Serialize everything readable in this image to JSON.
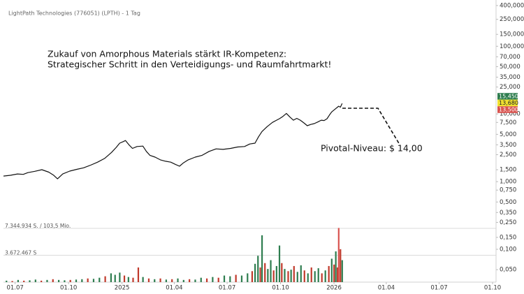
{
  "chart_data": {
    "type": "line",
    "title": "LightPath Technologies (776051) (LPTH) - 1 Tag",
    "annotations": [
      "Zukauf von Amorphous Materials stärkt IR-Kompetenz:",
      "Strategischer Schritt in den Verteidigungs- und Raumfahrtmarkt!",
      "Pivotal-Niveau: $ 14,00"
    ],
    "log_scale": true,
    "xlim": [
      -20,
      828
    ],
    "xticks": [
      {
        "value": 0,
        "label": "01.07"
      },
      {
        "value": 92,
        "label": "01.10"
      },
      {
        "value": 184,
        "label": "2025"
      },
      {
        "value": 274,
        "label": "01.04"
      },
      {
        "value": 365,
        "label": "01.07"
      },
      {
        "value": 457,
        "label": "01.10"
      },
      {
        "value": 549,
        "label": "2026"
      },
      {
        "value": 639,
        "label": "01.04"
      },
      {
        "value": 730,
        "label": "01.07"
      },
      {
        "value": 822,
        "label": "01.10"
      }
    ],
    "ylim": [
      0.036,
      483
    ],
    "yticks": [
      {
        "value": 400,
        "label": "400,000"
      },
      {
        "value": 250,
        "label": "250,000"
      },
      {
        "value": 150,
        "label": "150,000"
      },
      {
        "value": 100,
        "label": "100,000"
      },
      {
        "value": 70,
        "label": "70,000"
      },
      {
        "value": 50,
        "label": "50,000"
      },
      {
        "value": 35,
        "label": "35,000"
      },
      {
        "value": 25,
        "label": "25,000"
      },
      {
        "value": 10,
        "label": "10,000"
      },
      {
        "value": 7.5,
        "label": "7,500"
      },
      {
        "value": 5,
        "label": "5,000"
      },
      {
        "value": 3.5,
        "label": "3,500"
      },
      {
        "value": 2.5,
        "label": "2,500"
      },
      {
        "value": 1.5,
        "label": "1,500"
      },
      {
        "value": 1,
        "label": "1,000"
      },
      {
        "value": 0.75,
        "label": "0,750"
      },
      {
        "value": 0.5,
        "label": "0,500"
      },
      {
        "value": 0.35,
        "label": "0,350"
      },
      {
        "value": 0.25,
        "label": "0,250"
      },
      {
        "value": 0.15,
        "label": "0,150"
      },
      {
        "value": 0.1,
        "label": "0,100"
      },
      {
        "value": 0.05,
        "label": "0,050"
      }
    ],
    "series": [
      {
        "color": "#111111",
        "x": [
          -20,
          -8,
          4,
          14,
          22,
          34,
          46,
          58,
          66,
          73,
          82,
          94,
          106,
          118,
          130,
          142,
          154,
          166,
          174,
          180,
          186,
          190,
          196,
          202,
          210,
          220,
          226,
          232,
          241,
          250,
          259,
          268,
          276,
          283,
          290,
          298,
          310,
          322,
          334,
          346,
          358,
          371,
          383,
          395,
          404,
          413,
          419,
          425,
          434,
          443,
          449,
          455,
          461,
          467,
          473,
          479,
          485,
          491,
          497,
          503,
          509,
          515,
          521,
          527,
          532,
          537,
          541,
          545,
          551,
          557,
          560,
          563
        ],
        "values": [
          1.21,
          1.24,
          1.3,
          1.28,
          1.36,
          1.42,
          1.5,
          1.38,
          1.25,
          1.1,
          1.3,
          1.43,
          1.52,
          1.6,
          1.75,
          1.94,
          2.2,
          2.7,
          3.2,
          3.7,
          3.9,
          4.05,
          3.5,
          3.1,
          3.3,
          3.35,
          2.8,
          2.45,
          2.3,
          2.1,
          2.0,
          1.94,
          1.8,
          1.69,
          1.9,
          2.1,
          2.3,
          2.45,
          2.8,
          3.05,
          3.0,
          3.1,
          3.25,
          3.3,
          3.6,
          3.7,
          4.6,
          5.5,
          6.5,
          7.5,
          8.0,
          8.5,
          9.2,
          10.2,
          9.0,
          8.1,
          8.6,
          8.1,
          7.4,
          6.7,
          7.0,
          7.2,
          7.6,
          8.1,
          8.0,
          8.5,
          9.6,
          10.7,
          11.8,
          13.0,
          12.6,
          14.3
        ]
      }
    ],
    "price_labels": [
      {
        "label": "15,450",
        "value": 15.45,
        "color": "#2e7d4f"
      },
      {
        "label": "13,680",
        "value": 13.68,
        "color": "#f0e130"
      },
      {
        "label": "13,500",
        "value": 13.5,
        "color": "#d9534f"
      }
    ],
    "volume": {
      "type": "bar",
      "ylim": [
        0,
        7726000
      ],
      "yticks": [
        {
          "value": 7344934,
          "label": "7.344.934 S. / 103,5 Mio."
        },
        {
          "value": 3672467,
          "label": "3.672.467 S"
        }
      ],
      "x": [
        -15,
        -5,
        5,
        15,
        25,
        35,
        45,
        55,
        65,
        75,
        85,
        95,
        105,
        115,
        125,
        135,
        145,
        155,
        165,
        172,
        180,
        188,
        195,
        203,
        212,
        220,
        230,
        240,
        250,
        260,
        270,
        280,
        290,
        300,
        310,
        320,
        330,
        340,
        350,
        360,
        370,
        380,
        390,
        400,
        408,
        413,
        418,
        422,
        425,
        430,
        435,
        440,
        445,
        450,
        455,
        459,
        464,
        470,
        475,
        480,
        486,
        492,
        498,
        504,
        510,
        516,
        522,
        528,
        534,
        540,
        545,
        549,
        552,
        555,
        557,
        560,
        563
      ],
      "values": [
        200000,
        150000,
        300000,
        200000,
        250000,
        350000,
        200000,
        300000,
        400000,
        300000,
        250000,
        300000,
        350000,
        400000,
        500000,
        450000,
        600000,
        800000,
        1200000,
        1000000,
        1300000,
        900000,
        700000,
        600000,
        2000000,
        700000,
        500000,
        400000,
        500000,
        350000,
        400000,
        500000,
        300000,
        400000,
        350000,
        600000,
        500000,
        700000,
        600000,
        900000,
        800000,
        1000000,
        900000,
        1200000,
        1500000,
        2500000,
        3600000,
        2000000,
        6400000,
        2600000,
        1800000,
        3000000,
        1600000,
        2200000,
        5000000,
        2600000,
        1800000,
        1500000,
        1700000,
        2200000,
        1400000,
        2300000,
        1600000,
        1200000,
        2000000,
        1500000,
        1900000,
        1200000,
        1600000,
        2200000,
        3200000,
        2400000,
        4200000,
        2000000,
        7400000,
        4500000,
        3000000
      ],
      "colors": [
        "#2e7d4f",
        "#c0392b",
        "#2e7d4f",
        "#c0392b",
        "#2e7d4f",
        "#2e7d4f",
        "#c0392b",
        "#2e7d4f",
        "#c0392b",
        "#2e7d4f",
        "#2e7d4f",
        "#c0392b",
        "#2e7d4f",
        "#2e7d4f",
        "#c0392b",
        "#2e7d4f",
        "#2e7d4f",
        "#c0392b",
        "#2e7d4f",
        "#2e7d4f",
        "#2e7d4f",
        "#c0392b",
        "#2e7d4f",
        "#c0392b",
        "#c0392b",
        "#2e7d4f",
        "#c0392b",
        "#2e7d4f",
        "#c0392b",
        "#2e7d4f",
        "#c0392b",
        "#2e7d4f",
        "#2e7d4f",
        "#c0392b",
        "#2e7d4f",
        "#2e7d4f",
        "#c0392b",
        "#2e7d4f",
        "#c0392b",
        "#2e7d4f",
        "#2e7d4f",
        "#c0392b",
        "#2e7d4f",
        "#2e7d4f",
        "#c0392b",
        "#2e7d4f",
        "#2e7d4f",
        "#c0392b",
        "#2e7d4f",
        "#c0392b",
        "#2e7d4f",
        "#2e7d4f",
        "#c0392b",
        "#2e7d4f",
        "#2e7d4f",
        "#c0392b",
        "#2e7d4f",
        "#c0392b",
        "#2e7d4f",
        "#c0392b",
        "#2e7d4f",
        "#2e7d4f",
        "#c0392b",
        "#2e7d4f",
        "#c0392b",
        "#2e7d4f",
        "#2e7d4f",
        "#c0392b",
        "#2e7d4f",
        "#c0392b",
        "#2e7d4f",
        "#c0392b",
        "#2e7d4f",
        "#c0392b",
        "#d9534f",
        "#c0392b",
        "#2e7d4f"
      ]
    }
  }
}
